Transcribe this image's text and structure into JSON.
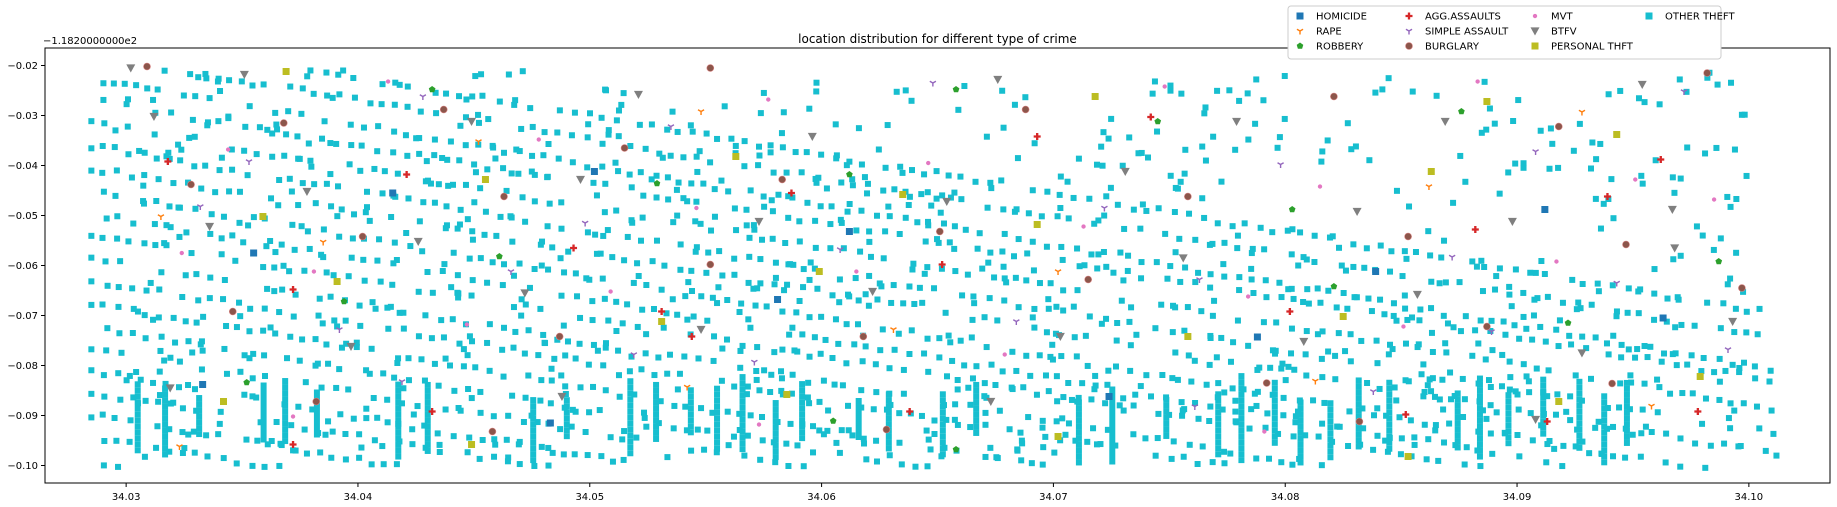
{
  "chart_data": {
    "type": "scatter",
    "title": "location distribution for different type of crime",
    "xlabel": "",
    "ylabel": "",
    "y_offset_text": "−1.1820000000e2",
    "xlim": [
      34.0265,
      34.1035
    ],
    "ylim": [
      -0.1035,
      -0.0165
    ],
    "x_ticks": [
      34.03,
      34.04,
      34.05,
      34.06,
      34.07,
      34.08,
      34.09,
      34.1
    ],
    "x_tick_labels": [
      "34.03",
      "34.04",
      "34.05",
      "34.06",
      "34.07",
      "34.08",
      "34.09",
      "34.10"
    ],
    "y_ticks": [
      -0.02,
      -0.03,
      -0.04,
      -0.05,
      -0.06,
      -0.07,
      -0.08,
      -0.09,
      -0.1
    ],
    "y_tick_labels": [
      "−0.02",
      "−0.03",
      "−0.04",
      "−0.05",
      "−0.06",
      "−0.07",
      "−0.08",
      "−0.09",
      "−0.10"
    ],
    "grid": false,
    "legend_position": "top-right",
    "series": [
      {
        "name": "HOMICIDE",
        "marker": "square",
        "color": "#1f77b4",
        "points": [
          [
            34.0355,
            -0.0575
          ],
          [
            34.0415,
            -0.0455
          ],
          [
            34.0502,
            -0.0412
          ],
          [
            34.0581,
            -0.0668
          ],
          [
            34.0612,
            -0.0532
          ],
          [
            34.0724,
            -0.0862
          ],
          [
            34.0788,
            -0.0743
          ],
          [
            34.0839,
            -0.0612
          ],
          [
            34.0912,
            -0.0488
          ],
          [
            34.0963,
            -0.0705
          ],
          [
            34.0483,
            -0.0915
          ],
          [
            34.0333,
            -0.0838
          ]
        ]
      },
      {
        "name": "RAPE",
        "marker": "tri_down",
        "color": "#ff7f0e",
        "points": [
          [
            34.0323,
            -0.0962
          ],
          [
            34.0385,
            -0.0553
          ],
          [
            34.0452,
            -0.0352
          ],
          [
            34.0548,
            -0.0292
          ],
          [
            34.0631,
            -0.0728
          ],
          [
            34.0702,
            -0.0612
          ],
          [
            34.0813,
            -0.0831
          ],
          [
            34.0862,
            -0.0442
          ],
          [
            34.0928,
            -0.0293
          ],
          [
            34.0958,
            -0.0881
          ],
          [
            34.0315,
            -0.0502
          ],
          [
            34.0542,
            -0.0843
          ]
        ]
      },
      {
        "name": "ROBBERY",
        "marker": "pentagon",
        "color": "#2ca02c",
        "points": [
          [
            34.0432,
            -0.0248
          ],
          [
            34.0461,
            -0.0582
          ],
          [
            34.0529,
            -0.0436
          ],
          [
            34.0612,
            -0.0418
          ],
          [
            34.0658,
            -0.0248
          ],
          [
            34.0745,
            -0.0312
          ],
          [
            34.0803,
            -0.0488
          ],
          [
            34.0876,
            -0.0292
          ],
          [
            34.0922,
            -0.0715
          ],
          [
            34.0987,
            -0.0592
          ],
          [
            34.0394,
            -0.0672
          ],
          [
            34.0605,
            -0.0911
          ],
          [
            34.0658,
            -0.0968
          ],
          [
            34.0821,
            -0.0642
          ],
          [
            34.0352,
            -0.0834
          ]
        ]
      },
      {
        "name": "AGG.ASSAULTS",
        "marker": "plus",
        "color": "#d62728",
        "points": [
          [
            34.0318,
            -0.0392
          ],
          [
            34.0372,
            -0.0648
          ],
          [
            34.0421,
            -0.0418
          ],
          [
            34.0493,
            -0.0565
          ],
          [
            34.0531,
            -0.0692
          ],
          [
            34.0587,
            -0.0455
          ],
          [
            34.0638,
            -0.0892
          ],
          [
            34.0693,
            -0.0342
          ],
          [
            34.0742,
            -0.0303
          ],
          [
            34.0802,
            -0.0692
          ],
          [
            34.0852,
            -0.0898
          ],
          [
            34.0913,
            -0.0912
          ],
          [
            34.0962,
            -0.0388
          ],
          [
            34.0978,
            -0.0892
          ],
          [
            34.0652,
            -0.0598
          ],
          [
            34.0882,
            -0.0528
          ],
          [
            34.0432,
            -0.0892
          ],
          [
            34.0372,
            -0.0958
          ],
          [
            34.0544,
            -0.0742
          ],
          [
            34.0939,
            -0.0462
          ]
        ]
      },
      {
        "name": "SIMPLE ASSAULT",
        "marker": "tri_down",
        "color": "#9467bd",
        "points": [
          [
            34.0332,
            -0.0482
          ],
          [
            34.0353,
            -0.0392
          ],
          [
            34.0392,
            -0.0728
          ],
          [
            34.0428,
            -0.0262
          ],
          [
            34.0466,
            -0.0612
          ],
          [
            34.0498,
            -0.0515
          ],
          [
            34.0535,
            -0.0322
          ],
          [
            34.0571,
            -0.0793
          ],
          [
            34.0608,
            -0.0568
          ],
          [
            34.0648,
            -0.0235
          ],
          [
            34.0684,
            -0.0712
          ],
          [
            34.0722,
            -0.0485
          ],
          [
            34.0763,
            -0.0628
          ],
          [
            34.0798,
            -0.0398
          ],
          [
            34.0838,
            -0.0852
          ],
          [
            34.0872,
            -0.0583
          ],
          [
            34.0908,
            -0.0372
          ],
          [
            34.0943,
            -0.0635
          ],
          [
            34.0972,
            -0.0252
          ],
          [
            34.0991,
            -0.0768
          ],
          [
            34.0419,
            -0.0832
          ],
          [
            34.0519,
            -0.0778
          ],
          [
            34.0761,
            -0.0882
          ],
          [
            34.0889,
            -0.0732
          ]
        ]
      },
      {
        "name": "BURGLARY",
        "marker": "circle",
        "color": "#8c564b",
        "points": [
          [
            34.0309,
            -0.0202
          ],
          [
            34.0328,
            -0.0438
          ],
          [
            34.0346,
            -0.0692
          ],
          [
            34.0368,
            -0.0315
          ],
          [
            34.0402,
            -0.0542
          ],
          [
            34.0437,
            -0.0288
          ],
          [
            34.0463,
            -0.0462
          ],
          [
            34.0487,
            -0.0742
          ],
          [
            34.0515,
            -0.0365
          ],
          [
            34.0552,
            -0.0598
          ],
          [
            34.0583,
            -0.0428
          ],
          [
            34.0618,
            -0.0742
          ],
          [
            34.0651,
            -0.0532
          ],
          [
            34.0688,
            -0.0288
          ],
          [
            34.0715,
            -0.0628
          ],
          [
            34.0758,
            -0.0462
          ],
          [
            34.0792,
            -0.0835
          ],
          [
            34.0821,
            -0.0262
          ],
          [
            34.0853,
            -0.0542
          ],
          [
            34.0887,
            -0.0722
          ],
          [
            34.0918,
            -0.0322
          ],
          [
            34.0947,
            -0.0558
          ],
          [
            34.0982,
            -0.0215
          ],
          [
            34.0997,
            -0.0645
          ],
          [
            34.0382,
            -0.0872
          ],
          [
            34.0458,
            -0.0932
          ],
          [
            34.0628,
            -0.0928
          ],
          [
            34.0832,
            -0.0912
          ],
          [
            34.0941,
            -0.0836
          ],
          [
            34.0552,
            -0.0205
          ]
        ]
      },
      {
        "name": "MVT",
        "marker": "point",
        "color": "#e377c2",
        "points": [
          [
            34.0324,
            -0.0575
          ],
          [
            34.0344,
            -0.0368
          ],
          [
            34.0381,
            -0.0612
          ],
          [
            34.0413,
            -0.0232
          ],
          [
            34.0447,
            -0.0718
          ],
          [
            34.0478,
            -0.0348
          ],
          [
            34.0509,
            -0.0652
          ],
          [
            34.0546,
            -0.0485
          ],
          [
            34.0577,
            -0.0268
          ],
          [
            34.0615,
            -0.0612
          ],
          [
            34.0646,
            -0.0395
          ],
          [
            34.0679,
            -0.0778
          ],
          [
            34.0713,
            -0.0522
          ],
          [
            34.0748,
            -0.0242
          ],
          [
            34.0784,
            -0.0662
          ],
          [
            34.0815,
            -0.0442
          ],
          [
            34.0851,
            -0.0722
          ],
          [
            34.0883,
            -0.0232
          ],
          [
            34.0917,
            -0.0592
          ],
          [
            34.0951,
            -0.0428
          ],
          [
            34.0985,
            -0.0468
          ],
          [
            34.0372,
            -0.0902
          ],
          [
            34.0573,
            -0.0918
          ],
          [
            34.0791,
            -0.0932
          ]
        ]
      },
      {
        "name": "BTFV",
        "marker": "triangle_down",
        "color": "#7f7f7f",
        "points": [
          [
            34.0302,
            -0.0205
          ],
          [
            34.0312,
            -0.0302
          ],
          [
            34.0336,
            -0.0522
          ],
          [
            34.0351,
            -0.0218
          ],
          [
            34.0378,
            -0.0452
          ],
          [
            34.0397,
            -0.0762
          ],
          [
            34.0426,
            -0.0552
          ],
          [
            34.0449,
            -0.0312
          ],
          [
            34.0472,
            -0.0655
          ],
          [
            34.0496,
            -0.0428
          ],
          [
            34.0521,
            -0.0258
          ],
          [
            34.0548,
            -0.0728
          ],
          [
            34.0573,
            -0.0512
          ],
          [
            34.0596,
            -0.0342
          ],
          [
            34.0622,
            -0.0652
          ],
          [
            34.0654,
            -0.0472
          ],
          [
            34.0676,
            -0.0228
          ],
          [
            34.0703,
            -0.0742
          ],
          [
            34.0731,
            -0.0412
          ],
          [
            34.0756,
            -0.0585
          ],
          [
            34.0779,
            -0.0312
          ],
          [
            34.0808,
            -0.0752
          ],
          [
            34.0831,
            -0.0492
          ],
          [
            34.0857,
            -0.0658
          ],
          [
            34.0869,
            -0.0312
          ],
          [
            34.0898,
            -0.0512
          ],
          [
            34.0928,
            -0.0775
          ],
          [
            34.0954,
            -0.0238
          ],
          [
            34.0967,
            -0.0488
          ],
          [
            34.0993,
            -0.0712
          ],
          [
            34.0319,
            -0.0845
          ],
          [
            34.0488,
            -0.0862
          ],
          [
            34.0673,
            -0.0872
          ],
          [
            34.0908,
            -0.0908
          ],
          [
            34.0968,
            -0.0565
          ]
        ]
      },
      {
        "name": "PERSONAL THFT",
        "marker": "square",
        "color": "#bcbd22",
        "points": [
          [
            34.0359,
            -0.0502
          ],
          [
            34.0369,
            -0.0212
          ],
          [
            34.0391,
            -0.0632
          ],
          [
            34.0455,
            -0.0428
          ],
          [
            34.0531,
            -0.0712
          ],
          [
            34.0563,
            -0.0382
          ],
          [
            34.0599,
            -0.0612
          ],
          [
            34.0635,
            -0.0458
          ],
          [
            34.0693,
            -0.0518
          ],
          [
            34.0718,
            -0.0262
          ],
          [
            34.0758,
            -0.0742
          ],
          [
            34.0825,
            -0.0702
          ],
          [
            34.0863,
            -0.0412
          ],
          [
            34.0887,
            -0.0272
          ],
          [
            34.0918,
            -0.0872
          ],
          [
            34.0943,
            -0.0338
          ],
          [
            34.0979,
            -0.0822
          ],
          [
            34.0342,
            -0.0872
          ],
          [
            34.0449,
            -0.0958
          ],
          [
            34.0702,
            -0.0942
          ],
          [
            34.0853,
            -0.0982
          ],
          [
            34.0585,
            -0.0858
          ]
        ]
      },
      {
        "name": "OTHER THEFT",
        "marker": "square",
        "color": "#17becf",
        "points": []
      }
    ]
  }
}
